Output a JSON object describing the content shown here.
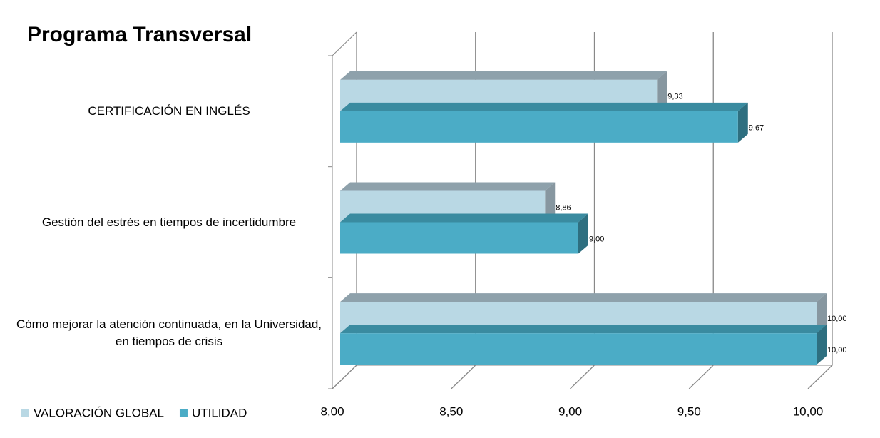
{
  "chart_data": {
    "type": "bar",
    "orientation": "horizontal",
    "title": "Programa Transversal",
    "categories": [
      "CERTIFICACIÓN EN INGLÉS",
      "Gestión del estrés en tiempos de incertidumbre",
      "Cómo mejorar la atención continuada, en la Universidad, en tiempos de crisis"
    ],
    "series": [
      {
        "name": "VALORACIÓN GLOBAL",
        "color": "#b9d8e4",
        "values": [
          9.33,
          8.86,
          10.0
        ],
        "value_labels": [
          "9,33",
          "8,86",
          "10,00"
        ]
      },
      {
        "name": "UTILIDAD",
        "color": "#4bacc6",
        "values": [
          9.67,
          9.0,
          10.0
        ],
        "value_labels": [
          "9,67",
          "9,00",
          "10,00"
        ]
      }
    ],
    "xlim": [
      8,
      10
    ],
    "xticks": [
      {
        "value": 8,
        "label": "8,00"
      },
      {
        "value": 8.5,
        "label": "8,50"
      },
      {
        "value": 9,
        "label": "9,00"
      },
      {
        "value": 9.5,
        "label": "9,50"
      },
      {
        "value": 10,
        "label": "10,00"
      }
    ],
    "grid": true,
    "legend": "bottom-left"
  }
}
